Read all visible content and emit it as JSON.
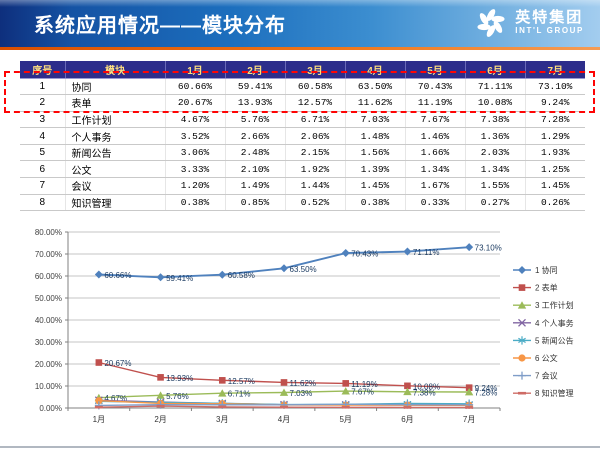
{
  "header": {
    "title": "系统应用情况——模块分布",
    "logo": {
      "name_cn": "英特集团",
      "name_en": "INT'L GROUP"
    }
  },
  "table": {
    "columns": [
      "序号",
      "模块",
      "1月",
      "2月",
      "3月",
      "4月",
      "5月",
      "6月",
      "7月"
    ],
    "rows": [
      [
        "1",
        "协同",
        "60.66%",
        "59.41%",
        "60.58%",
        "63.50%",
        "70.43%",
        "71.11%",
        "73.10%"
      ],
      [
        "2",
        "表单",
        "20.67%",
        "13.93%",
        "12.57%",
        "11.62%",
        "11.19%",
        "10.08%",
        "9.24%"
      ],
      [
        "3",
        "工作计划",
        "4.67%",
        "5.76%",
        "6.71%",
        "7.03%",
        "7.67%",
        "7.38%",
        "7.28%"
      ],
      [
        "4",
        "个人事务",
        "3.52%",
        "2.66%",
        "2.06%",
        "1.48%",
        "1.46%",
        "1.36%",
        "1.29%"
      ],
      [
        "5",
        "新闻公告",
        "3.06%",
        "2.48%",
        "2.15%",
        "1.56%",
        "1.66%",
        "2.03%",
        "1.93%"
      ],
      [
        "6",
        "公文",
        "3.33%",
        "2.10%",
        "1.92%",
        "1.39%",
        "1.34%",
        "1.34%",
        "1.25%"
      ],
      [
        "7",
        "会议",
        "1.20%",
        "1.49%",
        "1.44%",
        "1.45%",
        "1.67%",
        "1.55%",
        "1.45%"
      ],
      [
        "8",
        "知识管理",
        "0.38%",
        "0.85%",
        "0.52%",
        "0.38%",
        "0.33%",
        "0.27%",
        "0.26%"
      ]
    ],
    "highlight_color": "#fe0404"
  },
  "chart_data": {
    "type": "line",
    "title": "",
    "xlabel": "",
    "ylabel": "",
    "categories": [
      "1月",
      "2月",
      "3月",
      "4月",
      "5月",
      "6月",
      "7月"
    ],
    "series": [
      {
        "name": "1 协同",
        "color": "#4F81BD",
        "marker": "diamond",
        "labels": true,
        "values": [
          60.66,
          59.41,
          60.58,
          63.5,
          70.43,
          71.11,
          73.1
        ]
      },
      {
        "name": "2 表单",
        "color": "#C0504D",
        "marker": "square",
        "labels": true,
        "values": [
          20.67,
          13.93,
          12.57,
          11.62,
          11.19,
          10.08,
          9.24
        ]
      },
      {
        "name": "3 工作计划",
        "color": "#9BBB59",
        "marker": "triangle",
        "labels": true,
        "values": [
          4.67,
          5.76,
          6.71,
          7.03,
          7.67,
          7.38,
          7.28
        ]
      },
      {
        "name": "4 个人事务",
        "color": "#8064A2",
        "marker": "x",
        "labels": false,
        "values": [
          3.52,
          2.66,
          2.06,
          1.48,
          1.46,
          1.36,
          1.29
        ]
      },
      {
        "name": "5 新闻公告",
        "color": "#4BACC6",
        "marker": "asterisk",
        "labels": false,
        "values": [
          3.06,
          2.48,
          2.15,
          1.56,
          1.66,
          2.03,
          1.93
        ]
      },
      {
        "name": "6 公文",
        "color": "#F79646",
        "marker": "circle",
        "labels": false,
        "values": [
          3.33,
          2.1,
          1.92,
          1.39,
          1.34,
          1.34,
          1.25
        ]
      },
      {
        "name": "7 会议",
        "color": "#7F9DC8",
        "marker": "plus",
        "labels": false,
        "values": [
          1.2,
          1.49,
          1.44,
          1.45,
          1.67,
          1.55,
          1.45
        ]
      },
      {
        "name": "8 知识管理",
        "color": "#CE6B65",
        "marker": "dash",
        "labels": false,
        "values": [
          0.38,
          0.85,
          0.52,
          0.38,
          0.33,
          0.27,
          0.26
        ]
      }
    ],
    "ylim": [
      0,
      80
    ],
    "ytick_step": 10,
    "ytick_format": "0.00%",
    "grid": true,
    "legend_position": "right"
  }
}
